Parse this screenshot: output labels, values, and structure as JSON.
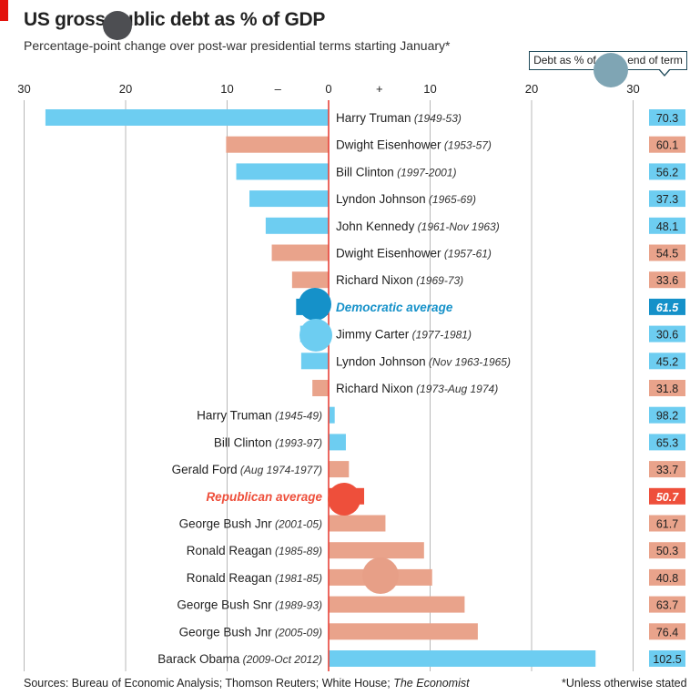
{
  "header": {
    "title": "US gross public debt as % of GDP",
    "subtitle": "Percentage-point change over post-war presidential terms starting January*",
    "table_header": "Debt as % of GDP, end of term"
  },
  "colors": {
    "democrat": "#6dcdf1",
    "republican": "#e9a38b",
    "democrat_avg": "#1591c9",
    "republican_avg": "#ee4f3b",
    "zero_line": "#e8433a",
    "gridline": "#b8b8b8",
    "red_tag": "#e3120b"
  },
  "chart_data": {
    "type": "bar",
    "orientation": "horizontal",
    "xlim": [
      -30,
      30
    ],
    "xticks": [
      30,
      20,
      10,
      0,
      10,
      20,
      30
    ],
    "sign_labels": {
      "negative": "–",
      "positive": "+"
    },
    "grid": true,
    "rows": [
      {
        "name": "Harry Truman",
        "term": "(1949-53)",
        "party": "D",
        "change": -27.9,
        "debt": "70.3"
      },
      {
        "name": "Dwight Eisenhower",
        "term": "(1953-57)",
        "party": "R",
        "change": -10.1,
        "debt": "60.1"
      },
      {
        "name": "Bill Clinton",
        "term": "(1997-2001)",
        "party": "D",
        "change": -9.1,
        "debt": "56.2"
      },
      {
        "name": "Lyndon Johnson",
        "term": "(1965-69)",
        "party": "D",
        "change": -7.8,
        "debt": "37.3"
      },
      {
        "name": "John Kennedy",
        "term": "(1961-Nov 1963)",
        "party": "D",
        "change": -6.2,
        "debt": "48.1"
      },
      {
        "name": "Dwight Eisenhower",
        "term": "(1957-61)",
        "party": "R",
        "change": -5.6,
        "debt": "54.5"
      },
      {
        "name": "Richard Nixon",
        "term": "(1969-73)",
        "party": "R",
        "change": -3.6,
        "debt": "33.6"
      },
      {
        "name": "Democratic average",
        "term": "",
        "party": "D",
        "average": true,
        "change": -3.2,
        "debt": "61.5"
      },
      {
        "name": "Jimmy Carter",
        "term": "(1977-1981)",
        "party": "D",
        "change": -2.8,
        "debt": "30.6"
      },
      {
        "name": "Lyndon Johnson",
        "term": "(Nov 1963-1965)",
        "party": "D",
        "change": -2.7,
        "debt": "45.2"
      },
      {
        "name": "Richard Nixon",
        "term": "(1973-Aug 1974)",
        "party": "R",
        "change": -1.6,
        "debt": "31.8"
      },
      {
        "name": "Harry Truman",
        "term": "(1945-49)",
        "party": "D",
        "change": 0.6,
        "debt": "98.2"
      },
      {
        "name": "Bill Clinton",
        "term": "(1993-97)",
        "party": "D",
        "change": 1.7,
        "debt": "65.3"
      },
      {
        "name": "Gerald Ford",
        "term": "(Aug 1974-1977)",
        "party": "R",
        "change": 2.0,
        "debt": "33.7"
      },
      {
        "name": "Republican average",
        "term": "",
        "party": "R",
        "average": true,
        "change": 3.5,
        "debt": "50.7"
      },
      {
        "name": "George Bush Jnr",
        "term": "(2001-05)",
        "party": "R",
        "change": 5.6,
        "debt": "61.7"
      },
      {
        "name": "Ronald Reagan",
        "term": "(1985-89)",
        "party": "R",
        "change": 9.4,
        "debt": "50.3"
      },
      {
        "name": "Ronald Reagan",
        "term": "(1981-85)",
        "party": "R",
        "change": 10.2,
        "debt": "40.8"
      },
      {
        "name": "George Bush Snr",
        "term": "(1989-93)",
        "party": "R",
        "change": 13.4,
        "debt": "63.7"
      },
      {
        "name": "George Bush Jnr",
        "term": "(2005-09)",
        "party": "R",
        "change": 14.7,
        "debt": "76.4"
      },
      {
        "name": "Barack Obama",
        "term": "(2009-Oct 2012)",
        "party": "D",
        "change": 26.3,
        "debt": "102.5"
      }
    ]
  },
  "footer": {
    "sources": "Sources: Bureau of Economic Analysis; Thomson Reuters; White House;",
    "sources_italic": "The Economist",
    "footnote": "*Unless otherwise stated"
  }
}
